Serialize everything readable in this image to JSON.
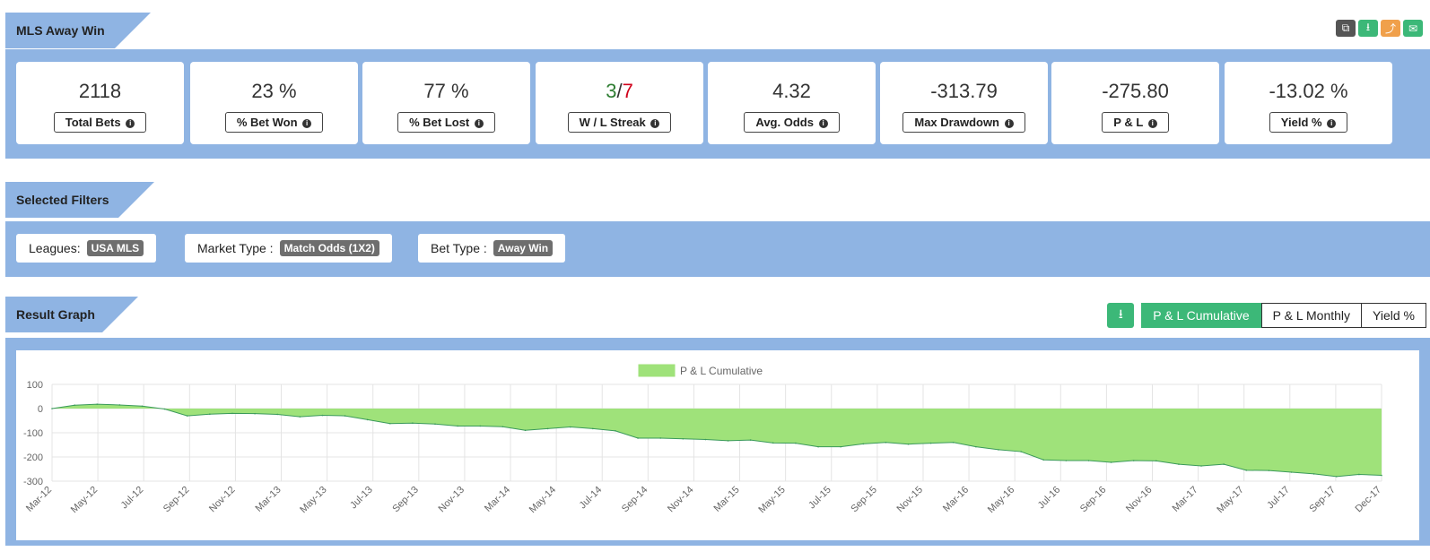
{
  "header": {
    "title": "MLS Away Win",
    "icons": [
      "copy-icon",
      "download-icon",
      "share-icon",
      "email-icon"
    ],
    "icon_colors": [
      "#555555",
      "#3cb878",
      "#f0a04b",
      "#3cb878"
    ]
  },
  "stats": [
    {
      "value": "2118",
      "label": "Total Bets",
      "tone": "neutral"
    },
    {
      "value": "23 %",
      "label": "% Bet Won",
      "tone": "neutral"
    },
    {
      "value": "77 %",
      "label": "% Bet Lost",
      "tone": "neutral"
    },
    {
      "value_win": "3",
      "sep": "/",
      "value_loss": "7",
      "label": "W / L Streak",
      "tone": "mixed"
    },
    {
      "value": "4.32",
      "label": "Avg. Odds",
      "tone": "neutral"
    },
    {
      "value": "-313.79",
      "label": "Max Drawdown",
      "tone": "negative"
    },
    {
      "value": "-275.80",
      "label": "P & L",
      "tone": "negative"
    },
    {
      "value": "-13.02 %",
      "label": "Yield %",
      "tone": "negative"
    }
  ],
  "filters": {
    "title": "Selected Filters",
    "items": [
      {
        "key": "Leagues:",
        "value": "USA MLS"
      },
      {
        "key": "Market Type :",
        "value": "Match Odds (1X2)"
      },
      {
        "key": "Bet Type :",
        "value": "Away Win"
      }
    ]
  },
  "graph": {
    "title": "Result Graph",
    "toggles": [
      "P & L Cumulative",
      "P & L Monthly",
      "Yield %"
    ],
    "active_toggle": "P & L Cumulative"
  },
  "colors": {
    "panel": "#8fb4e3",
    "accent": "#3cb878",
    "negative": "#d0021b",
    "positive": "#2e7d32",
    "area_fill": "#9fe27a",
    "area_line": "#3a9a5a"
  },
  "chart_data": {
    "type": "area",
    "legend": "P & L Cumulative",
    "legend_position": "top-center",
    "grid": true,
    "ylim": [
      -300,
      100
    ],
    "yticks": [
      100,
      0,
      -100,
      -200,
      -300
    ],
    "xticks": [
      "Mar-12",
      "May-12",
      "Jul-12",
      "Sep-12",
      "Nov-12",
      "Mar-13",
      "May-13",
      "Jul-13",
      "Sep-13",
      "Nov-13",
      "Mar-14",
      "May-14",
      "Jul-14",
      "Sep-14",
      "Nov-14",
      "Mar-15",
      "May-15",
      "Jul-15",
      "Sep-15",
      "Nov-15",
      "Mar-16",
      "May-16",
      "Jul-16",
      "Sep-16",
      "Nov-16",
      "Mar-17",
      "May-17",
      "Jul-17",
      "Sep-17",
      "Dec-17"
    ],
    "x": [
      "Mar-12",
      "Apr-12",
      "May-12",
      "Jun-12",
      "Jul-12",
      "Aug-12",
      "Sep-12",
      "Oct-12",
      "Nov-12",
      "Dec-12",
      "Mar-13",
      "Apr-13",
      "May-13",
      "Jun-13",
      "Jul-13",
      "Aug-13",
      "Sep-13",
      "Oct-13",
      "Nov-13",
      "Dec-13",
      "Mar-14",
      "Apr-14",
      "May-14",
      "Jun-14",
      "Jul-14",
      "Aug-14",
      "Sep-14",
      "Oct-14",
      "Nov-14",
      "Dec-14",
      "Mar-15",
      "Apr-15",
      "May-15",
      "Jun-15",
      "Jul-15",
      "Aug-15",
      "Sep-15",
      "Oct-15",
      "Nov-15",
      "Dec-15",
      "Mar-16",
      "Apr-16",
      "May-16",
      "Jun-16",
      "Jul-16",
      "Aug-16",
      "Sep-16",
      "Oct-16",
      "Nov-16",
      "Dec-16",
      "Mar-17",
      "Apr-17",
      "May-17",
      "Jun-17",
      "Jul-17",
      "Aug-17",
      "Sep-17",
      "Oct-17",
      "Nov-17",
      "Dec-17"
    ],
    "values": [
      0,
      14,
      18,
      15,
      10,
      -2,
      -30,
      -23,
      -20,
      -21,
      -24,
      -34,
      -28,
      -30,
      -46,
      -62,
      -60,
      -64,
      -72,
      -72,
      -75,
      -90,
      -83,
      -76,
      -83,
      -92,
      -122,
      -122,
      -125,
      -128,
      -133,
      -130,
      -142,
      -143,
      -158,
      -158,
      -146,
      -140,
      -147,
      -143,
      -140,
      -158,
      -170,
      -178,
      -212,
      -215,
      -215,
      -222,
      -215,
      -216,
      -230,
      -237,
      -230,
      -255,
      -256,
      -263,
      -270,
      -281,
      -272,
      -276
    ]
  }
}
